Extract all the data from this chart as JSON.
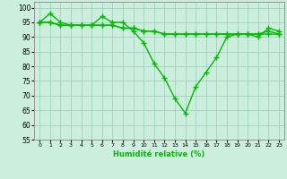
{
  "x": [
    0,
    1,
    2,
    3,
    4,
    5,
    6,
    7,
    8,
    9,
    10,
    11,
    12,
    13,
    14,
    15,
    16,
    17,
    18,
    19,
    20,
    21,
    22,
    23
  ],
  "series1": [
    95,
    98,
    95,
    94,
    94,
    94,
    97,
    95,
    95,
    92,
    88,
    81,
    76,
    69,
    64,
    73,
    78,
    83,
    90,
    91,
    91,
    90,
    93,
    92
  ],
  "series2": [
    95,
    95,
    94,
    94,
    94,
    94,
    94,
    94,
    93,
    93,
    92,
    92,
    91,
    91,
    91,
    91,
    91,
    91,
    91,
    91,
    91,
    91,
    91,
    91
  ],
  "series3": [
    95,
    95,
    94,
    94,
    94,
    94,
    94,
    94,
    93,
    93,
    92,
    92,
    91,
    91,
    91,
    91,
    91,
    91,
    91,
    91,
    91,
    91,
    92,
    91
  ],
  "line_color": "#00bb00",
  "bg_color": "#cceedd",
  "grid_color": "#99ccbb",
  "label_color": "#00bb00",
  "xlabel": "Humidité relative (%)",
  "ylim": [
    55,
    102
  ],
  "yticks": [
    55,
    60,
    65,
    70,
    75,
    80,
    85,
    90,
    95,
    100
  ],
  "marker": "+",
  "markersize": 4,
  "linewidth": 1.0
}
